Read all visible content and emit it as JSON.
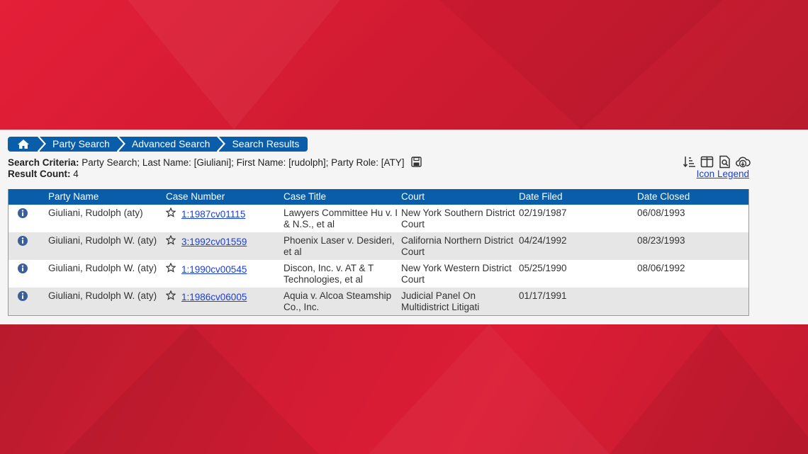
{
  "breadcrumb": {
    "home_icon": "home-icon",
    "items": [
      "Party Search",
      "Advanced Search",
      "Search Results"
    ]
  },
  "criteria": {
    "label": "Search Criteria:",
    "value": " Party Search; Last Name: [Giuliani]; First Name: [rudolph]; Party Role: [ATY]",
    "count_label": "Result Count:",
    "count_value": " 4"
  },
  "tools": {
    "icons": [
      "sort-icon",
      "columns-icon",
      "preview-icon",
      "download-icon"
    ],
    "legend_link": "Icon Legend"
  },
  "table": {
    "headers": [
      "Party Name",
      "Case Number",
      "Case Title",
      "Court",
      "Date Filed",
      "Date Closed"
    ],
    "rows": [
      {
        "party_name": "Giuliani, Rudolph (aty)",
        "case_number": "1:1987cv01115",
        "case_title": "Lawyers Committee Hu v. I & N.S., et al",
        "court": "New York Southern District Court",
        "date_filed": "02/19/1987",
        "date_closed": "06/08/1993"
      },
      {
        "party_name": "Giuliani, Rudolph W. (aty)",
        "case_number": "3:1992cv01559",
        "case_title": "Phoenix Laser v. Desideri, et al",
        "court": "California Northern District Court",
        "date_filed": "04/24/1992",
        "date_closed": "08/23/1993"
      },
      {
        "party_name": "Giuliani, Rudolph W. (aty)",
        "case_number": "1:1990cv00545",
        "case_title": "Discon, Inc. v. AT & T Technologies, et al",
        "court": "New York Western District Court",
        "date_filed": "05/25/1990",
        "date_closed": "08/06/1992"
      },
      {
        "party_name": "Giuliani, Rudolph W. (aty)",
        "case_number": "1:1986cv06005",
        "case_title": "Aquia v. Alcoa Steamship Co., Inc.",
        "court": "Judicial Panel On Multidistrict Litigati",
        "date_filed": "01/17/1991",
        "date_closed": ""
      }
    ]
  },
  "colors": {
    "accent": "#0a5da8",
    "background_red": "#d21c33",
    "link": "#1a3edb"
  }
}
